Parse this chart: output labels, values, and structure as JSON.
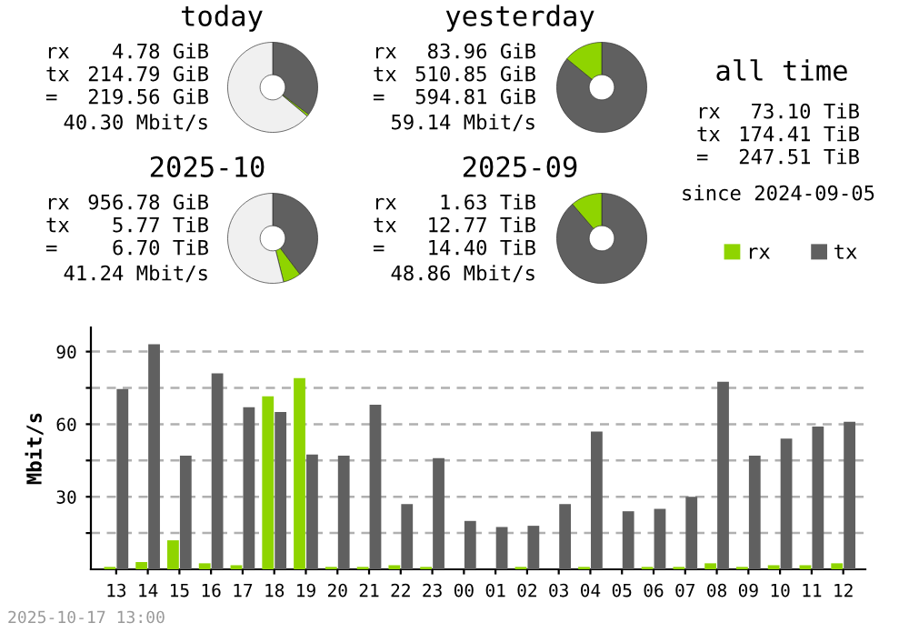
{
  "chart_data": [
    {
      "type": "donut",
      "title": "today",
      "categories": [
        null,
        null,
        null
      ],
      "values": [
        35.3,
        0.8,
        63.9
      ],
      "colors": [
        "#606060",
        "#8fd400",
        "#f0f0f0"
      ],
      "annotations": [
        "rx",
        "4.78 GiB",
        "tx",
        "214.79 GiB",
        "=",
        "219.56 GiB",
        "40.30 Mbit/s"
      ]
    },
    {
      "type": "donut",
      "title": "yesterday",
      "categories": [
        null,
        null
      ],
      "values": [
        85.9,
        14.1
      ],
      "colors": [
        "#606060",
        "#8fd400"
      ],
      "annotations": [
        "rx",
        "83.96 GiB",
        "tx",
        "510.85 GiB",
        "=",
        "594.81 GiB",
        "59.14 Mbit/s"
      ]
    },
    {
      "type": "other",
      "title": "all time",
      "annotations": [
        "rx",
        "73.10 TiB",
        "tx",
        "174.41 TiB",
        "=",
        "247.51 TiB",
        "since 2024-09-05"
      ]
    },
    {
      "type": "donut",
      "title": "2025-10",
      "categories": [
        null,
        null,
        null
      ],
      "values": [
        39.7,
        6.4,
        53.9
      ],
      "colors": [
        "#606060",
        "#8fd400",
        "#f0f0f0"
      ],
      "annotations": [
        "rx",
        "956.78 GiB",
        "tx",
        "5.77 TiB",
        "=",
        "6.70 TiB",
        "41.24 Mbit/s"
      ]
    },
    {
      "type": "donut",
      "title": "2025-09",
      "categories": [
        null,
        null
      ],
      "values": [
        88.7,
        11.3
      ],
      "colors": [
        "#606060",
        "#8fd400"
      ],
      "annotations": [
        "rx",
        "1.63 TiB",
        "tx",
        "12.77 TiB",
        "=",
        "14.40 TiB",
        "48.86 Mbit/s"
      ]
    },
    {
      "type": "bar",
      "ylabel": "Mbit/s",
      "categories": [
        "13",
        "14",
        "15",
        "16",
        "17",
        "18",
        "19",
        "20",
        "21",
        "22",
        "23",
        "00",
        "01",
        "02",
        "03",
        "04",
        "05",
        "06",
        "07",
        "08",
        "09",
        "10",
        "11",
        "12"
      ],
      "series": [
        {
          "name": "rx",
          "color": "#8fd400",
          "values": [
            1,
            3,
            12,
            2.5,
            1.7,
            71.5,
            79,
            1,
            1,
            1.7,
            1,
            0,
            0,
            1,
            0,
            1,
            0,
            1,
            1,
            2.5,
            1,
            1.7,
            1.7,
            2.5
          ]
        },
        {
          "name": "tx",
          "color": "#606060",
          "values": [
            74.5,
            93,
            47,
            81,
            67,
            65,
            47.5,
            47,
            68,
            27,
            46,
            20,
            17.5,
            18,
            27,
            57,
            24,
            25,
            30,
            77.5,
            47,
            54,
            59,
            61
          ]
        }
      ],
      "ylim": [
        0,
        100
      ],
      "yticks": [
        {
          "value": 15,
          "label": null
        },
        30,
        {
          "value": 45,
          "label": null
        },
        60,
        {
          "value": 75,
          "label": null
        },
        90
      ],
      "grid": "y",
      "legend": "top right",
      "annotations": [
        "2025-10-17 13:00"
      ]
    }
  ]
}
